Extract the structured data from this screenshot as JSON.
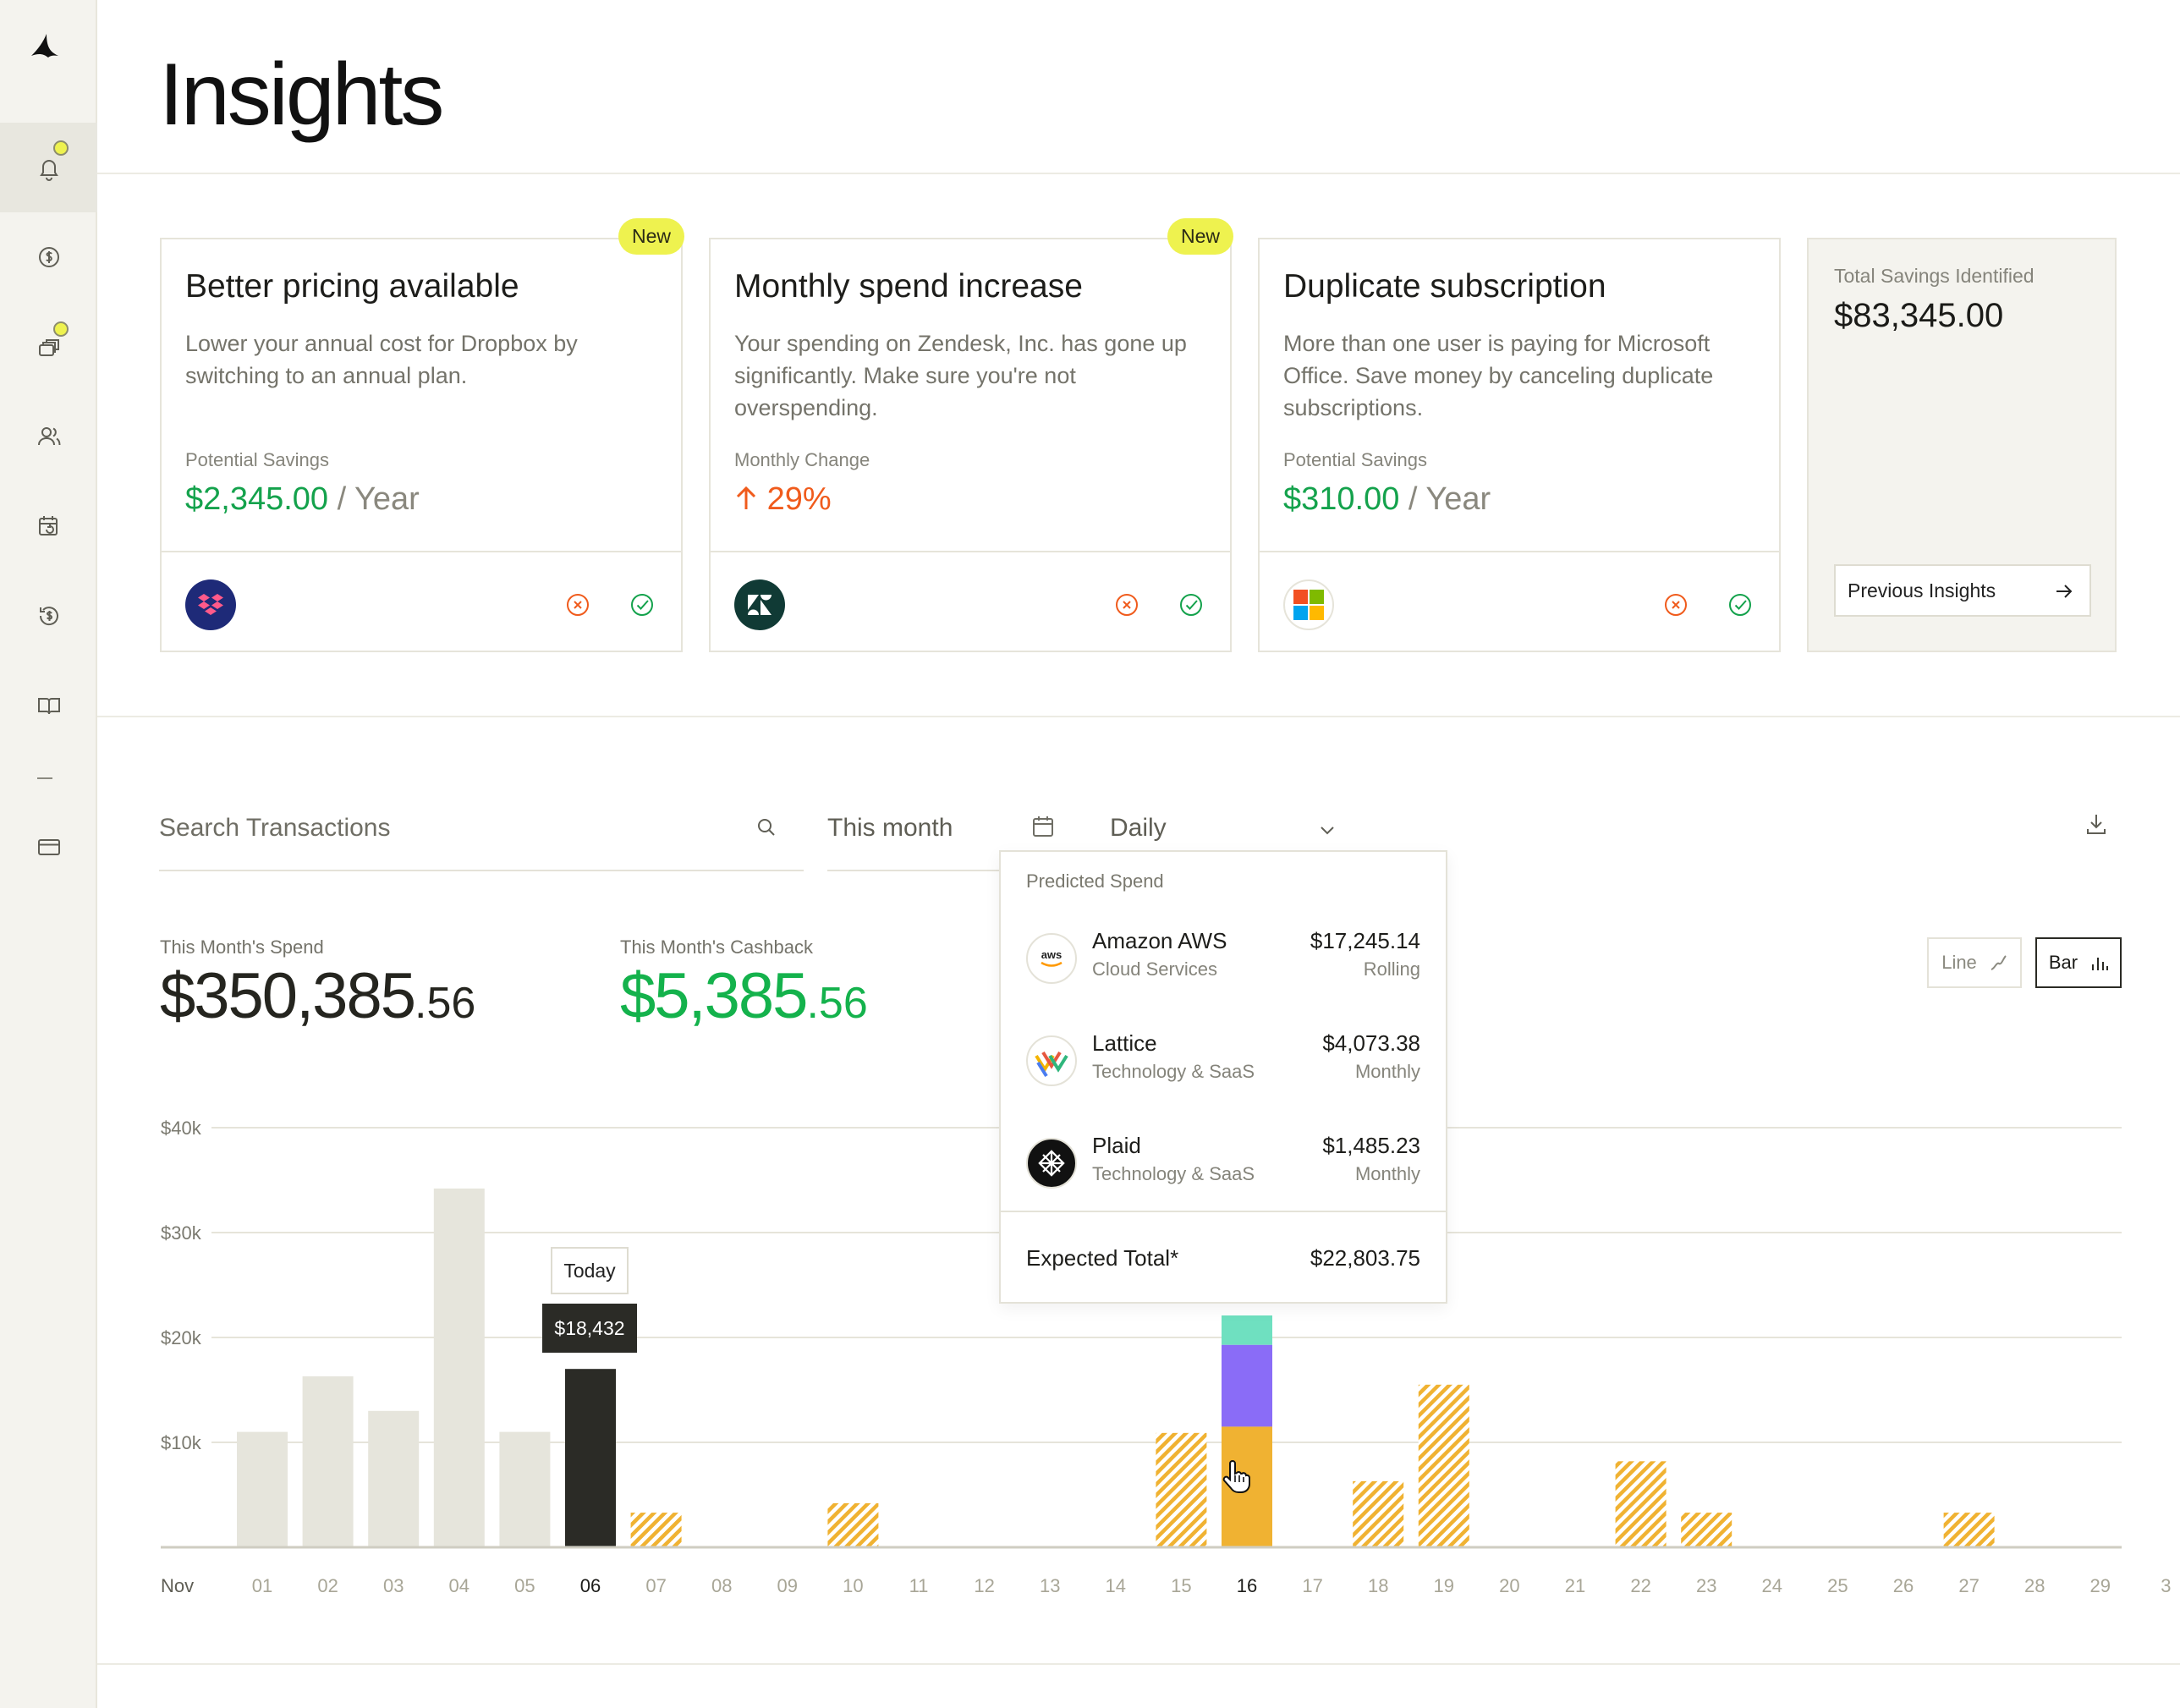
{
  "page": {
    "title": "Insights"
  },
  "sidebar": {
    "items": [
      {
        "icon": "bell-icon",
        "active": true,
        "dot": true
      },
      {
        "icon": "dollar-circle-icon",
        "active": false,
        "dot": false
      },
      {
        "icon": "cards-stack-icon",
        "active": false,
        "dot": true
      },
      {
        "icon": "users-icon",
        "active": false,
        "dot": false
      },
      {
        "icon": "calendar-refresh-icon",
        "active": false,
        "dot": false
      },
      {
        "icon": "cashback-icon",
        "active": false,
        "dot": false
      },
      {
        "icon": "book-icon",
        "active": false,
        "dot": false
      },
      {
        "icon": "credit-card-icon",
        "active": false,
        "dot": false
      }
    ]
  },
  "insights": [
    {
      "title": "Better pricing available",
      "badge": "New",
      "description": "Lower your annual cost for Dropbox by switching to an annual plan.",
      "metric_label": "Potential Savings",
      "metric_value": "$2,345.00",
      "metric_suffix": " / Year",
      "vendor": "Dropbox"
    },
    {
      "title": "Monthly spend increase",
      "badge": "New",
      "description": "Your spending on Zendesk, Inc. has gone up significantly. Make sure you're not overspending.",
      "metric_label": "Monthly Change",
      "metric_value": "29%",
      "metric_suffix": "",
      "vendor": "Zendesk"
    },
    {
      "title": "Duplicate subscription",
      "badge": "",
      "description": "More than one user is paying for Microsoft Office. Save money by canceling duplicate subscriptions.",
      "metric_label": "Potential Savings",
      "metric_value": "$310.00",
      "metric_suffix": " / Year",
      "vendor": "Microsoft"
    }
  ],
  "savings": {
    "label": "Total Savings Identified",
    "value": "$83,345.00",
    "button": "Previous Insights"
  },
  "filters": {
    "search_placeholder": "Search Transactions",
    "date_range": "This month",
    "frequency": "Daily"
  },
  "stats": {
    "spend_label": "This Month's Spend",
    "spend_main": "$350,385",
    "spend_cents": ".56",
    "cashback_label": "This Month's Cashback",
    "cashback_main": "$5,385",
    "cashback_cents": ".56"
  },
  "view_toggle": {
    "line": "Line",
    "bar": "Bar",
    "selected": "Bar"
  },
  "chart_tags": {
    "today": "Today",
    "value": "$18,432"
  },
  "predicted": {
    "title": "Predicted Spend",
    "items": [
      {
        "name": "Amazon AWS",
        "category": "Cloud Services",
        "amount": "$17,245.14",
        "frequency": "Rolling",
        "logo_text": "aws"
      },
      {
        "name": "Lattice",
        "category": "Technology & SaaS",
        "amount": "$4,073.38",
        "frequency": "Monthly",
        "logo_text": ""
      },
      {
        "name": "Plaid",
        "category": "Technology & SaaS",
        "amount": "$1,485.23",
        "frequency": "Monthly",
        "logo_text": ""
      }
    ],
    "total_label": "Expected Total*",
    "total_value": "$22,803.75"
  },
  "colors": {
    "past": "#e6e5dc",
    "today": "#2b2b26",
    "predicted": "#f0b232",
    "segment_purple": "#8a6cf7",
    "segment_teal": "#6fe0c0",
    "green": "#14a24c",
    "orange": "#f05b1c",
    "badge": "#eef24f"
  },
  "chart_data": {
    "type": "bar",
    "xlabel_prefix": "Nov",
    "categories": [
      "01",
      "02",
      "03",
      "04",
      "05",
      "06",
      "07",
      "08",
      "09",
      "10",
      "11",
      "12",
      "13",
      "14",
      "15",
      "16",
      "17",
      "18",
      "19",
      "20",
      "21",
      "22",
      "23",
      "24",
      "25",
      "26",
      "27",
      "28",
      "29",
      "3"
    ],
    "highlight_categories": [
      "06",
      "16"
    ],
    "y_ticks": [
      "$10k",
      "$20k",
      "$30k",
      "$40k"
    ],
    "ylim": [
      0,
      40000
    ],
    "series": [
      {
        "values": [
          11000,
          16300,
          13000,
          34200,
          11000,
          null,
          null,
          null,
          null,
          null,
          null,
          null,
          null,
          null,
          null,
          null,
          null,
          null,
          null,
          null,
          null,
          null,
          null,
          null,
          null,
          null,
          null,
          null,
          null,
          null
        ]
      },
      {
        "values": [
          null,
          null,
          null,
          null,
          null,
          17000,
          null,
          null,
          null,
          null,
          null,
          null,
          null,
          null,
          null,
          null,
          null,
          null,
          null,
          null,
          null,
          null,
          null,
          null,
          null,
          null,
          null,
          null,
          null,
          null
        ]
      },
      {
        "values": [
          null,
          null,
          null,
          null,
          null,
          null,
          3300,
          null,
          null,
          4200,
          null,
          null,
          null,
          null,
          10900,
          11500,
          null,
          6300,
          15500,
          null,
          null,
          8200,
          3300,
          null,
          null,
          null,
          3300,
          null,
          null,
          null
        ]
      },
      {
        "values": [
          null,
          null,
          null,
          null,
          null,
          null,
          null,
          null,
          null,
          null,
          null,
          null,
          null,
          null,
          null,
          7800,
          null,
          null,
          null,
          null,
          null,
          null,
          null,
          null,
          null,
          null,
          null,
          null,
          null,
          null
        ]
      },
      {
        "values": [
          null,
          null,
          null,
          null,
          null,
          null,
          null,
          null,
          null,
          null,
          null,
          null,
          null,
          null,
          null,
          2800,
          null,
          null,
          null,
          null,
          null,
          null,
          null,
          null,
          null,
          null,
          null,
          null,
          null,
          null
        ]
      }
    ],
    "grid": true,
    "legend": "none"
  }
}
